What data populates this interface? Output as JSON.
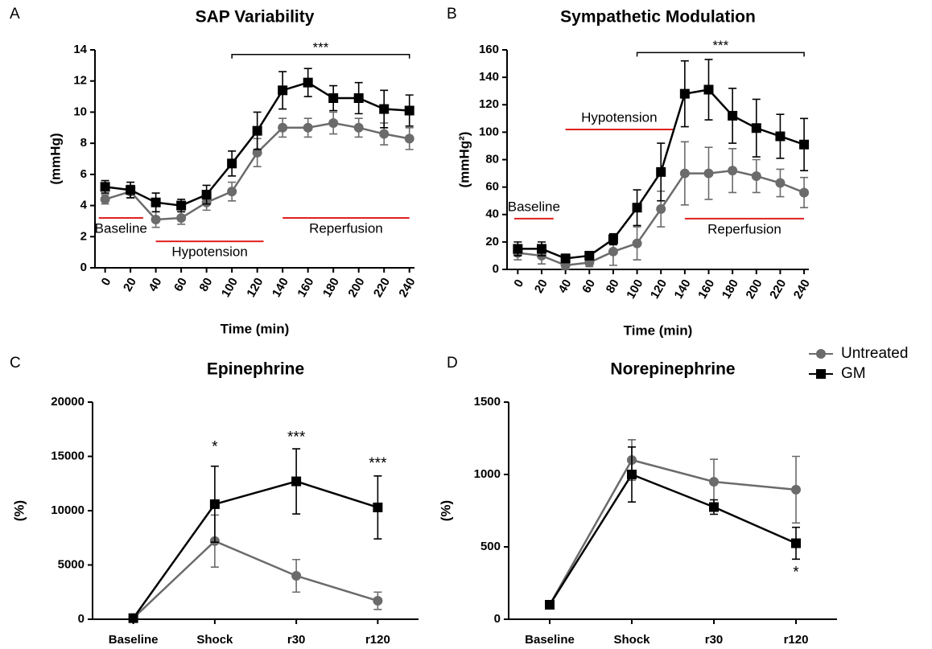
{
  "legend": {
    "entries": [
      {
        "name": "Untreated",
        "color": "#6b6b6b",
        "marker": "circle"
      },
      {
        "name": "GM",
        "color": "#000000",
        "marker": "square"
      }
    ]
  },
  "chart_data": [
    {
      "type": "line",
      "panel_label": "A",
      "title": "SAP Variability",
      "x_label": "Time (min)",
      "y_label": "(mmHg)",
      "x": [
        0,
        20,
        40,
        60,
        80,
        100,
        120,
        140,
        160,
        180,
        200,
        220,
        240
      ],
      "xlim": [
        -8,
        244
      ],
      "xticks": [
        0,
        20,
        40,
        60,
        80,
        100,
        120,
        140,
        160,
        180,
        200,
        220,
        240
      ],
      "ylim": [
        0,
        14
      ],
      "yticks": [
        0,
        2,
        4,
        6,
        8,
        10,
        12,
        14
      ],
      "series": [
        {
          "values": [
            4.4,
            4.9,
            3.1,
            3.2,
            4.2,
            4.9,
            7.4,
            9.0,
            9.0,
            9.3,
            9.0,
            8.6,
            8.3
          ],
          "errors": [
            0.3,
            0.4,
            0.5,
            0.4,
            0.5,
            0.6,
            0.9,
            0.6,
            0.6,
            0.7,
            0.6,
            0.7,
            0.7
          ]
        },
        {
          "values": [
            5.2,
            5.0,
            4.2,
            4.0,
            4.7,
            6.7,
            8.8,
            11.4,
            11.9,
            10.9,
            10.9,
            10.2,
            10.1
          ],
          "errors": [
            0.4,
            0.5,
            0.6,
            0.4,
            0.6,
            0.8,
            1.2,
            1.2,
            0.9,
            0.8,
            1.0,
            1.2,
            1.0
          ]
        }
      ],
      "phases": [
        {
          "label": "Baseline",
          "start": -5,
          "end": 30,
          "y": 3.2,
          "label_side": "below"
        },
        {
          "label": "Hypotension",
          "start": 40,
          "end": 125,
          "y": 1.7,
          "label_side": "below"
        },
        {
          "label": "Reperfusion",
          "start": 140,
          "end": 240,
          "y": 3.2,
          "label_side": "below"
        }
      ],
      "brackets": [
        {
          "label": "***",
          "start": 100,
          "end": 240,
          "y": 13.7
        }
      ]
    },
    {
      "type": "line",
      "panel_label": "B",
      "title": "Sympathetic Modulation",
      "x_label": "Time (min)",
      "y_label": "(mmHg²)",
      "x": [
        0,
        20,
        40,
        60,
        80,
        100,
        120,
        140,
        160,
        180,
        200,
        220,
        240
      ],
      "xlim": [
        -9,
        244
      ],
      "xticks": [
        0,
        20,
        40,
        60,
        80,
        100,
        120,
        140,
        160,
        180,
        200,
        220,
        240
      ],
      "ylim": [
        0,
        160
      ],
      "yticks": [
        0,
        20,
        40,
        60,
        80,
        100,
        120,
        140,
        160
      ],
      "series": [
        {
          "values": [
            12,
            10,
            3,
            5,
            13,
            19,
            44,
            70,
            70,
            72,
            68,
            63,
            56
          ],
          "errors": [
            5,
            6,
            3,
            3,
            10,
            12,
            13,
            23,
            19,
            16,
            12,
            10,
            11
          ]
        },
        {
          "values": [
            15,
            15,
            8,
            10,
            22,
            45,
            71,
            128,
            131,
            112,
            103,
            97,
            91
          ],
          "errors": [
            5,
            5,
            3,
            3,
            4,
            13,
            21,
            24,
            22,
            20,
            21,
            16,
            19
          ]
        }
      ],
      "phases": [
        {
          "label": "Baseline",
          "start": -3,
          "end": 30,
          "y": 37,
          "label_side": "above"
        },
        {
          "label": "Hypotension",
          "start": 40,
          "end": 130,
          "y": 102,
          "label_side": "above"
        },
        {
          "label": "Reperfusion",
          "start": 140,
          "end": 240,
          "y": 37,
          "label_side": "below"
        }
      ],
      "brackets": [
        {
          "label": "***",
          "start": 100,
          "end": 240,
          "y": 158
        }
      ]
    },
    {
      "type": "line",
      "panel_label": "C",
      "title": "Epinephrine",
      "y_label": "(%)",
      "categories": [
        "Baseline",
        "Shock",
        "r30",
        "r120"
      ],
      "ylim": [
        0,
        20000
      ],
      "yticks": [
        0,
        5000,
        10000,
        15000,
        20000
      ],
      "series": [
        {
          "values": [
            100,
            7200,
            4000,
            1700
          ],
          "errors": [
            0,
            2400,
            1500,
            800
          ]
        },
        {
          "values": [
            100,
            10600,
            12700,
            10300
          ],
          "errors": [
            0,
            3500,
            3000,
            2900
          ]
        }
      ],
      "annotations": [
        {
          "label": "*",
          "at": "Shock",
          "y": 15800
        },
        {
          "label": "***",
          "at": "r30",
          "y": 16700
        },
        {
          "label": "***",
          "at": "r120",
          "y": 14300
        }
      ]
    },
    {
      "type": "line",
      "panel_label": "D",
      "title": "Norepinephrine",
      "y_label": "(%)",
      "categories": [
        "Baseline",
        "Shock",
        "r30",
        "r120"
      ],
      "ylim": [
        0,
        1500
      ],
      "yticks": [
        0,
        500,
        1000,
        1500
      ],
      "series": [
        {
          "values": [
            100,
            1100,
            950,
            895
          ],
          "errors": [
            0,
            140,
            155,
            230
          ]
        },
        {
          "values": [
            100,
            1000,
            775,
            525
          ],
          "errors": [
            0,
            190,
            50,
            110
          ]
        }
      ],
      "annotations": [
        {
          "label": "*",
          "at": "r120",
          "y": 320
        }
      ]
    }
  ]
}
